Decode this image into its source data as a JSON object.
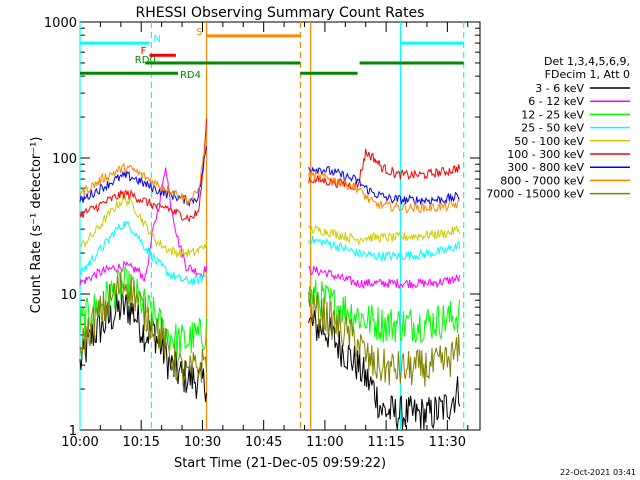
{
  "chart_data": {
    "type": "line",
    "title": "RHESSI Observing Summary Count Rates",
    "xlabel": "Start Time (21-Dec-05 09:59:22)",
    "ylabel": "Count Rate (s⁻¹ detector⁻¹)",
    "yscale": "log",
    "ylim": [
      1,
      1000
    ],
    "xlim": [
      0,
      98
    ],
    "x_unit": "minutes after 10:00",
    "xticks": [
      {
        "x": 0,
        "label": "10:00"
      },
      {
        "x": 15,
        "label": "10:15"
      },
      {
        "x": 30,
        "label": "10:30"
      },
      {
        "x": 45,
        "label": "10:45"
      },
      {
        "x": 60,
        "label": "11:00"
      },
      {
        "x": 75,
        "label": "11:15"
      },
      {
        "x": 90,
        "label": "11:30"
      }
    ],
    "yticks": [
      {
        "y": 1,
        "label": "1"
      },
      {
        "y": 10,
        "label": "10"
      },
      {
        "y": 100,
        "label": "100"
      },
      {
        "y": 1000,
        "label": "1000"
      }
    ],
    "legend": {
      "position": "right",
      "header": [
        "Det 1,3,4,5,6,9,",
        "FDecim 1, Att 0"
      ],
      "entries": [
        {
          "label": "3 - 6 keV",
          "color": "#000000"
        },
        {
          "label": "6 - 12 keV",
          "color": "#ff00ff"
        },
        {
          "label": "12 - 25 keV",
          "color": "#00ff00"
        },
        {
          "label": "25 - 50 keV",
          "color": "#00ffff"
        },
        {
          "label": "50 - 100 keV",
          "color": "#cccc00"
        },
        {
          "label": "100 - 300 keV",
          "color": "#ff0000"
        },
        {
          "label": "300 - 800 keV",
          "color": "#0000ff"
        },
        {
          "label": "800 - 7000 keV",
          "color": "#ff8800"
        },
        {
          "label": "7000 - 15000 keV",
          "color": "#808000"
        }
      ]
    },
    "segments": [
      [
        0,
        31
      ],
      [
        56,
        93
      ]
    ],
    "series": [
      {
        "color": "#000000",
        "points": [
          [
            0,
            3
          ],
          [
            3,
            5
          ],
          [
            6,
            6
          ],
          [
            9,
            7.5
          ],
          [
            11,
            8
          ],
          [
            13,
            7.5
          ],
          [
            16,
            5
          ],
          [
            18,
            5.5
          ],
          [
            19,
            4.5
          ],
          [
            20,
            4
          ],
          [
            22,
            3
          ],
          [
            25,
            2.5
          ],
          [
            27,
            2.4
          ],
          [
            29,
            2.3
          ],
          [
            31,
            2.2
          ],
          [
            56,
            6
          ],
          [
            60,
            5.5
          ],
          [
            64,
            4
          ],
          [
            68,
            3
          ],
          [
            70,
            2.4
          ],
          [
            72,
            2
          ],
          [
            74,
            1.4
          ],
          [
            78,
            1.3
          ],
          [
            82,
            1.3
          ],
          [
            86,
            1.3
          ],
          [
            90,
            1.5
          ],
          [
            93,
            2
          ]
        ]
      },
      {
        "color": "#ff00ff",
        "points": [
          [
            0,
            12
          ],
          [
            4,
            14
          ],
          [
            8,
            15.5
          ],
          [
            11,
            16
          ],
          [
            14,
            15
          ],
          [
            16,
            13
          ],
          [
            18,
            30
          ],
          [
            20,
            55
          ],
          [
            21,
            90
          ],
          [
            22,
            50
          ],
          [
            24,
            25
          ],
          [
            26,
            16
          ],
          [
            28,
            15
          ],
          [
            30,
            14
          ],
          [
            31,
            16
          ],
          [
            56,
            15
          ],
          [
            60,
            14.5
          ],
          [
            64,
            13
          ],
          [
            68,
            12
          ],
          [
            72,
            12
          ],
          [
            80,
            12
          ],
          [
            86,
            12
          ],
          [
            90,
            12.5
          ],
          [
            93,
            13
          ]
        ]
      },
      {
        "color": "#00ff00",
        "points": [
          [
            0,
            6
          ],
          [
            3,
            7.5
          ],
          [
            6,
            9
          ],
          [
            9,
            11
          ],
          [
            11,
            11.5
          ],
          [
            13,
            10.5
          ],
          [
            16,
            8
          ],
          [
            19,
            6.5
          ],
          [
            20,
            5.5
          ],
          [
            22,
            5
          ],
          [
            24,
            4.5
          ],
          [
            26,
            4.5
          ],
          [
            28,
            4.8
          ],
          [
            30,
            5
          ],
          [
            31,
            5.5
          ],
          [
            56,
            10
          ],
          [
            60,
            9
          ],
          [
            64,
            8
          ],
          [
            68,
            7
          ],
          [
            70,
            6.5
          ],
          [
            74,
            6
          ],
          [
            80,
            6
          ],
          [
            86,
            6.2
          ],
          [
            90,
            6.5
          ],
          [
            93,
            7
          ]
        ]
      },
      {
        "color": "#00ffff",
        "points": [
          [
            0,
            14
          ],
          [
            3,
            18
          ],
          [
            6,
            23
          ],
          [
            9,
            30
          ],
          [
            11,
            33
          ],
          [
            13,
            30
          ],
          [
            16,
            22
          ],
          [
            19,
            17
          ],
          [
            22,
            14
          ],
          [
            24,
            13
          ],
          [
            26,
            12.5
          ],
          [
            28,
            12.5
          ],
          [
            30,
            13
          ],
          [
            31,
            14
          ],
          [
            56,
            25
          ],
          [
            60,
            24
          ],
          [
            64,
            22
          ],
          [
            68,
            20
          ],
          [
            72,
            19
          ],
          [
            78,
            19
          ],
          [
            84,
            19.5
          ],
          [
            90,
            21
          ],
          [
            93,
            23
          ]
        ]
      },
      {
        "color": "#cccc00",
        "points": [
          [
            0,
            22
          ],
          [
            3,
            27
          ],
          [
            6,
            35
          ],
          [
            9,
            45
          ],
          [
            11,
            50
          ],
          [
            13,
            45
          ],
          [
            16,
            32
          ],
          [
            19,
            24
          ],
          [
            22,
            21
          ],
          [
            24,
            20
          ],
          [
            26,
            20
          ],
          [
            28,
            20
          ],
          [
            30,
            22
          ],
          [
            31,
            24
          ],
          [
            56,
            30
          ],
          [
            60,
            29
          ],
          [
            64,
            27
          ],
          [
            66,
            26
          ],
          [
            68,
            25
          ],
          [
            69,
            26
          ],
          [
            72,
            26
          ],
          [
            78,
            26
          ],
          [
            84,
            27
          ],
          [
            90,
            28
          ],
          [
            93,
            30
          ]
        ]
      },
      {
        "color": "#ff0000",
        "points": [
          [
            0,
            38
          ],
          [
            3,
            42
          ],
          [
            6,
            47
          ],
          [
            9,
            52
          ],
          [
            11,
            55
          ],
          [
            13,
            53
          ],
          [
            16,
            48
          ],
          [
            18,
            45
          ],
          [
            20,
            42
          ],
          [
            21,
            44
          ],
          [
            23,
            40
          ],
          [
            25,
            38
          ],
          [
            27,
            36
          ],
          [
            29,
            40
          ],
          [
            30,
            70
          ],
          [
            31,
            190
          ],
          [
            56,
            70
          ],
          [
            60,
            68
          ],
          [
            64,
            65
          ],
          [
            68,
            62
          ],
          [
            70,
            110
          ],
          [
            72,
            100
          ],
          [
            74,
            85
          ],
          [
            78,
            75
          ],
          [
            84,
            75
          ],
          [
            90,
            80
          ],
          [
            93,
            85
          ]
        ]
      },
      {
        "color": "#0000ff",
        "points": [
          [
            0,
            48
          ],
          [
            3,
            55
          ],
          [
            6,
            62
          ],
          [
            9,
            70
          ],
          [
            11,
            74
          ],
          [
            13,
            72
          ],
          [
            16,
            64
          ],
          [
            19,
            58
          ],
          [
            21,
            55
          ],
          [
            23,
            53
          ],
          [
            25,
            50
          ],
          [
            27,
            48
          ],
          [
            29,
            52
          ],
          [
            30,
            80
          ],
          [
            31,
            120
          ],
          [
            56,
            85
          ],
          [
            60,
            82
          ],
          [
            64,
            75
          ],
          [
            68,
            68
          ],
          [
            70,
            60
          ],
          [
            72,
            55
          ],
          [
            76,
            50
          ],
          [
            80,
            49
          ],
          [
            86,
            49
          ],
          [
            90,
            50
          ],
          [
            93,
            52
          ]
        ]
      },
      {
        "color": "#ff8800",
        "points": [
          [
            0,
            55
          ],
          [
            3,
            62
          ],
          [
            6,
            72
          ],
          [
            9,
            80
          ],
          [
            11,
            85
          ],
          [
            13,
            82
          ],
          [
            16,
            72
          ],
          [
            19,
            64
          ],
          [
            21,
            60
          ],
          [
            23,
            56
          ],
          [
            25,
            52
          ],
          [
            27,
            48
          ],
          [
            29,
            58
          ],
          [
            30,
            90
          ],
          [
            31,
            140
          ],
          [
            56,
            75
          ],
          [
            60,
            72
          ],
          [
            64,
            66
          ],
          [
            68,
            60
          ],
          [
            70,
            52
          ],
          [
            72,
            46
          ],
          [
            76,
            44
          ],
          [
            80,
            43
          ],
          [
            86,
            43
          ],
          [
            90,
            44
          ],
          [
            93,
            46
          ]
        ]
      },
      {
        "color": "#808000",
        "points": [
          [
            0,
            4
          ],
          [
            3,
            6
          ],
          [
            6,
            8
          ],
          [
            9,
            10.5
          ],
          [
            11,
            12
          ],
          [
            13,
            10.5
          ],
          [
            16,
            7
          ],
          [
            18,
            6
          ],
          [
            20,
            5
          ],
          [
            22,
            3.5
          ],
          [
            24,
            3
          ],
          [
            26,
            2.5
          ],
          [
            28,
            2.8
          ],
          [
            30,
            3
          ],
          [
            31,
            3.5
          ],
          [
            56,
            8.5
          ],
          [
            60,
            7
          ],
          [
            64,
            5.5
          ],
          [
            68,
            4.5
          ],
          [
            70,
            3.5
          ],
          [
            72,
            3
          ],
          [
            76,
            2.8
          ],
          [
            80,
            2.8
          ],
          [
            86,
            2.9
          ],
          [
            90,
            3.2
          ],
          [
            93,
            3.8
          ]
        ]
      }
    ],
    "state_bars": [
      {
        "label": "N",
        "color": "#00ffff",
        "y": 700,
        "spans": [
          [
            0,
            17
          ],
          [
            78.5,
            94
          ]
        ]
      },
      {
        "label": "S",
        "color": "#ff8800",
        "y": 790,
        "spans": [
          [
            31,
            54
          ]
        ]
      },
      {
        "label": "F",
        "color": "#ff0000",
        "y": 570,
        "spans": [
          [
            17,
            23.5
          ]
        ]
      },
      {
        "label": "RD0",
        "color": "#008800",
        "y": 500,
        "spans": [
          [
            16,
            54
          ],
          [
            68.5,
            94
          ]
        ]
      },
      {
        "label": "RD4",
        "color": "#008800",
        "y": 420,
        "spans": [
          [
            0,
            24
          ],
          [
            54,
            68
          ]
        ]
      }
    ],
    "vlines": [
      {
        "x": 0,
        "color": "#00ffff",
        "style": "solid"
      },
      {
        "x": 17.5,
        "color": "#00ffff",
        "style": "dashed"
      },
      {
        "x": 31,
        "color": "#ff8800",
        "style": "solid"
      },
      {
        "x": 54,
        "color": "#ff8800",
        "style": "dashed"
      },
      {
        "x": 56.5,
        "color": "#ff8800",
        "style": "solid"
      },
      {
        "x": 78.5,
        "color": "#00ffff",
        "style": "solid"
      },
      {
        "x": 94,
        "color": "#00ffff",
        "style": "dashed"
      }
    ]
  },
  "footer_date": "22-Oct-2021 03:41"
}
